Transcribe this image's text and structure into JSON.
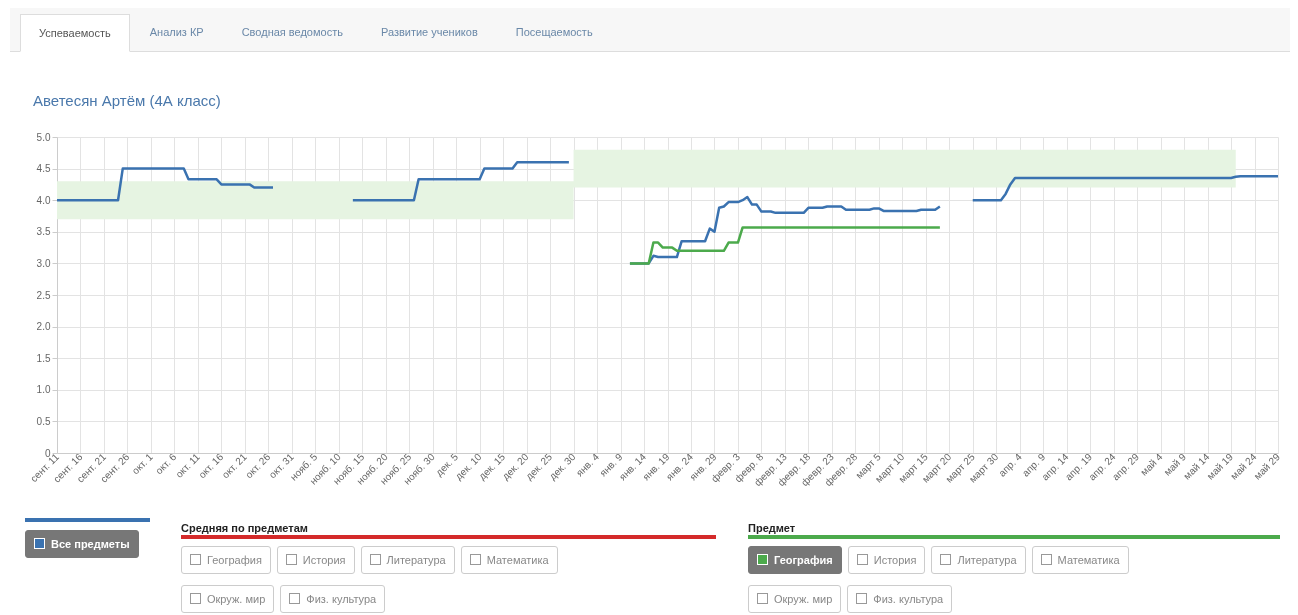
{
  "chart_data": {
    "type": "line",
    "title": "Аветесян Артём (4А класс)",
    "annotations": [
      "Успеваемость",
      "Анализ КР",
      "Сводная ведомость",
      "Развитие учеников",
      "Посещаемость",
      "Средняя по предметам",
      "География",
      "История",
      "Литература",
      "Математика",
      "Окруж. мир",
      "Физ. культура",
      "Предмет",
      "История",
      "Литература",
      "Математика",
      "Окруж. мир",
      "Физ. культура"
    ],
    "categories": [
      "сент. 11",
      null,
      null,
      null,
      null,
      "сент. 16",
      null,
      null,
      null,
      null,
      "сент. 21",
      null,
      null,
      null,
      null,
      "сент. 26",
      null,
      null,
      null,
      null,
      "окт. 1",
      null,
      null,
      null,
      null,
      "окт. 6",
      null,
      null,
      null,
      null,
      "окт. 11",
      null,
      null,
      null,
      null,
      "окт. 16",
      null,
      null,
      null,
      null,
      "окт. 21",
      null,
      null,
      null,
      null,
      "окт. 26",
      null,
      null,
      null,
      null,
      "окт. 31",
      null,
      null,
      null,
      null,
      "нояб. 5",
      null,
      null,
      null,
      null,
      "нояб. 10",
      null,
      null,
      null,
      null,
      "нояб. 15",
      null,
      null,
      null,
      null,
      "нояб. 20",
      null,
      null,
      null,
      null,
      "нояб. 25",
      null,
      null,
      null,
      null,
      "нояб. 30",
      null,
      null,
      null,
      null,
      "дек. 5",
      null,
      null,
      null,
      null,
      "дек. 10",
      null,
      null,
      null,
      null,
      "дек. 15",
      null,
      null,
      null,
      null,
      "дек. 20",
      null,
      null,
      null,
      null,
      "дек. 25",
      null,
      null,
      null,
      null,
      "дек. 30",
      null,
      null,
      null,
      null,
      "янв. 4",
      null,
      null,
      null,
      null,
      "янв. 9",
      null,
      null,
      null,
      null,
      "янв. 14",
      null,
      null,
      null,
      null,
      "янв. 19",
      null,
      null,
      null,
      null,
      "янв. 24",
      null,
      null,
      null,
      null,
      "янв. 29",
      null,
      null,
      null,
      null,
      "февр. 3",
      null,
      null,
      null,
      null,
      "февр. 8",
      null,
      null,
      null,
      null,
      "февр. 13",
      null,
      null,
      null,
      null,
      "февр. 18",
      null,
      null,
      null,
      null,
      "февр. 23",
      null,
      null,
      null,
      null,
      "февр. 28",
      null,
      null,
      null,
      null,
      "март 5",
      null,
      null,
      null,
      null,
      "март 10",
      null,
      null,
      null,
      null,
      "март 15",
      null,
      null,
      null,
      null,
      "март 20",
      null,
      null,
      null,
      null,
      "март 25",
      null,
      null,
      null,
      null,
      "март 30",
      null,
      null,
      null,
      null,
      "апр. 4",
      null,
      null,
      null,
      null,
      "апр. 9",
      null,
      null,
      null,
      null,
      "апр. 14",
      null,
      null,
      null,
      null,
      "апр. 19",
      null,
      null,
      null,
      null,
      "апр. 24",
      null,
      null,
      null,
      null,
      "апр. 29",
      null,
      null,
      null,
      null,
      "май 4",
      null,
      null,
      null,
      null,
      "май 9",
      null,
      null,
      null,
      null,
      "май 14",
      null,
      null,
      null,
      null,
      "май 19",
      null,
      null,
      null,
      null,
      "май 24",
      null,
      null,
      null,
      null,
      "май 29"
    ],
    "series": [
      {
        "type": "area",
        "color": "#e6f4e2",
        "values": [
          null,
          null,
          null,
          null,
          null,
          null,
          null,
          null,
          null,
          null,
          null,
          null,
          null,
          null,
          null,
          null,
          null,
          null,
          null,
          null,
          null,
          null,
          null,
          null,
          null,
          null,
          null,
          null,
          null,
          null,
          null,
          null,
          null,
          null,
          null,
          null,
          null,
          null,
          null,
          null,
          null,
          null,
          null,
          null,
          null,
          null,
          null,
          null,
          null,
          null,
          null,
          null,
          null,
          null,
          null,
          null,
          null,
          null,
          null,
          null,
          null,
          null,
          null,
          null,
          null,
          null,
          null,
          null,
          null,
          null,
          null,
          null,
          null,
          null,
          null,
          null,
          null,
          null,
          null,
          null,
          null,
          null,
          null,
          null,
          null,
          null,
          null,
          null,
          null,
          null,
          null,
          null,
          null,
          null,
          null,
          null,
          null,
          null,
          null,
          null,
          null,
          null,
          null,
          null,
          null,
          null,
          null,
          null,
          null,
          null,
          null,
          null,
          null,
          null,
          null,
          null,
          null,
          null,
          null,
          null,
          null,
          null,
          null,
          null,
          null,
          null,
          null,
          null,
          null,
          null,
          null,
          null,
          null,
          null,
          null,
          null,
          null,
          null,
          null,
          null,
          null,
          null,
          null,
          null,
          null,
          null,
          null,
          null,
          null,
          null,
          null,
          null,
          null,
          null,
          null,
          null,
          null,
          null,
          null,
          null,
          null,
          null,
          null,
          null,
          null,
          null,
          null,
          null,
          null,
          null,
          null,
          null,
          null,
          null,
          null,
          null,
          null,
          null,
          null,
          null,
          null,
          null,
          null,
          null,
          null,
          null,
          null,
          null,
          null,
          null,
          null,
          null,
          null,
          null,
          null,
          null,
          null,
          null,
          null,
          null,
          null,
          null,
          null,
          null,
          null,
          null,
          null,
          null,
          null,
          null,
          null,
          null,
          null,
          null,
          null,
          null,
          null,
          null,
          null,
          null,
          null,
          null,
          null,
          null,
          null,
          null,
          null,
          null,
          null,
          null,
          null,
          null,
          null,
          null,
          null,
          null,
          null,
          null,
          null,
          null,
          null,
          null,
          null,
          null,
          null,
          null,
          null,
          null,
          null,
          null,
          null,
          null,
          null,
          null,
          null,
          null,
          null,
          null,
          null,
          null,
          null
        ],
        "lower": [
          3.7,
          3.7,
          3.7,
          3.7,
          3.7,
          3.7,
          3.7,
          3.7,
          3.7,
          3.7,
          3.7,
          3.7,
          3.7,
          3.7,
          3.7,
          3.7,
          3.7,
          3.7,
          3.7,
          3.7,
          3.7,
          3.7,
          3.7,
          3.7,
          3.7,
          3.7,
          3.7,
          3.7,
          3.7,
          3.7,
          3.7,
          3.7,
          3.7,
          3.7,
          3.7,
          3.7,
          3.7,
          3.7,
          3.7,
          3.7,
          3.7,
          3.7,
          3.7,
          3.7,
          3.7,
          3.7,
          3.7,
          3.7,
          3.7,
          3.7,
          3.7,
          3.7,
          3.7,
          3.7,
          3.7,
          3.7,
          3.7,
          3.7,
          3.7,
          3.7,
          3.7,
          3.7,
          3.7,
          3.7,
          3.7,
          3.7,
          3.7,
          3.7,
          3.7,
          3.7,
          3.7,
          3.7,
          3.7,
          3.7,
          3.7,
          3.7,
          3.7,
          3.7,
          3.7,
          3.7,
          3.7,
          3.7,
          3.7,
          3.7,
          3.7,
          3.7,
          3.7,
          3.7,
          3.7,
          3.7,
          3.7,
          3.7,
          3.7,
          3.7,
          3.7,
          3.7,
          3.7,
          3.7,
          3.7,
          3.7,
          3.7,
          3.7,
          3.7,
          3.7,
          3.7,
          3.7,
          3.7,
          3.7,
          3.7,
          3.7,
          4.2,
          4.2,
          4.2,
          4.2,
          4.2,
          4.2,
          4.2,
          4.2,
          4.2,
          4.2,
          4.2,
          4.2,
          4.2,
          4.2,
          4.2,
          4.2,
          4.2,
          4.2,
          4.2,
          4.2,
          4.2,
          4.2,
          4.2,
          4.2,
          4.2,
          4.2,
          4.2,
          4.2,
          4.2,
          4.2,
          4.2,
          4.2,
          4.2,
          4.2,
          4.2,
          4.2,
          4.2,
          4.2,
          4.2,
          4.2,
          4.2,
          4.2,
          4.2,
          4.2,
          4.2,
          4.2,
          4.2,
          4.2,
          4.2,
          4.2,
          4.2,
          4.2,
          4.2,
          4.2,
          4.2,
          4.2,
          4.2,
          4.2,
          4.2,
          4.2,
          4.2,
          4.2,
          4.2,
          4.2,
          4.2,
          4.2,
          4.2,
          4.2,
          4.2,
          4.2,
          4.2,
          4.2,
          4.2,
          4.2,
          4.2,
          4.2,
          4.2,
          4.2,
          4.2,
          4.2,
          4.2,
          4.2,
          4.2,
          4.2,
          4.2,
          4.2,
          4.2,
          4.2,
          4.2,
          4.2,
          4.2,
          4.2,
          4.2,
          4.2,
          4.2,
          4.2,
          4.2,
          4.2,
          4.2,
          4.2,
          4.2,
          4.2,
          4.2,
          4.2,
          4.2,
          4.2,
          4.2,
          4.2,
          4.2,
          4.2,
          4.2,
          4.2,
          4.2,
          4.2,
          4.2,
          4.2,
          4.2,
          4.2,
          4.2,
          4.2,
          4.2,
          4.2,
          4.2,
          4.2,
          4.2,
          4.2,
          4.2,
          4.2,
          4.2,
          4.2,
          4.2,
          4.2,
          4.2,
          4.2,
          4.2,
          4.2,
          4.2,
          4.2,
          4.2,
          4.2,
          4.2,
          4.2,
          null,
          null,
          null,
          null,
          null,
          null,
          null,
          null,
          null
        ],
        "upper": [
          4.3,
          4.3,
          4.3,
          4.3,
          4.3,
          4.3,
          4.3,
          4.3,
          4.3,
          4.3,
          4.3,
          4.3,
          4.3,
          4.3,
          4.3,
          4.3,
          4.3,
          4.3,
          4.3,
          4.3,
          4.3,
          4.3,
          4.3,
          4.3,
          4.3,
          4.3,
          4.3,
          4.3,
          4.3,
          4.3,
          4.3,
          4.3,
          4.3,
          4.3,
          4.3,
          4.3,
          4.3,
          4.3,
          4.3,
          4.3,
          4.3,
          4.3,
          4.3,
          4.3,
          4.3,
          4.3,
          4.3,
          4.3,
          4.3,
          4.3,
          4.3,
          4.3,
          4.3,
          4.3,
          4.3,
          4.3,
          4.3,
          4.3,
          4.3,
          4.3,
          4.3,
          4.3,
          4.3,
          4.3,
          4.3,
          4.3,
          4.3,
          4.3,
          4.3,
          4.3,
          4.3,
          4.3,
          4.3,
          4.3,
          4.3,
          4.3,
          4.3,
          4.3,
          4.3,
          4.3,
          4.3,
          4.3,
          4.3,
          4.3,
          4.3,
          4.3,
          4.3,
          4.3,
          4.3,
          4.3,
          4.3,
          4.3,
          4.3,
          4.3,
          4.3,
          4.3,
          4.3,
          4.3,
          4.3,
          4.3,
          4.3,
          4.3,
          4.3,
          4.3,
          4.3,
          4.3,
          4.3,
          4.3,
          4.3,
          4.3,
          4.8,
          4.8,
          4.8,
          4.8,
          4.8,
          4.8,
          4.8,
          4.8,
          4.8,
          4.8,
          4.8,
          4.8,
          4.8,
          4.8,
          4.8,
          4.8,
          4.8,
          4.8,
          4.8,
          4.8,
          4.8,
          4.8,
          4.8,
          4.8,
          4.8,
          4.8,
          4.8,
          4.8,
          4.8,
          4.8,
          4.8,
          4.8,
          4.8,
          4.8,
          4.8,
          4.8,
          4.8,
          4.8,
          4.8,
          4.8,
          4.8,
          4.8,
          4.8,
          4.8,
          4.8,
          4.8,
          4.8,
          4.8,
          4.8,
          4.8,
          4.8,
          4.8,
          4.8,
          4.8,
          4.8,
          4.8,
          4.8,
          4.8,
          4.8,
          4.8,
          4.8,
          4.8,
          4.8,
          4.8,
          4.8,
          4.8,
          4.8,
          4.8,
          4.8,
          4.8,
          4.8,
          4.8,
          4.8,
          4.8,
          4.8,
          4.8,
          4.8,
          4.8,
          4.8,
          4.8,
          4.8,
          4.8,
          4.8,
          4.8,
          4.8,
          4.8,
          4.8,
          4.8,
          4.8,
          4.8,
          4.8,
          4.8,
          4.8,
          4.8,
          4.8,
          4.8,
          4.8,
          4.8,
          4.8,
          4.8,
          4.8,
          4.8,
          4.8,
          4.8,
          4.8,
          4.8,
          4.8,
          4.8,
          4.8,
          4.8,
          4.8,
          4.8,
          4.8,
          4.8,
          4.8,
          4.8,
          4.8,
          4.8,
          4.8,
          4.8,
          4.8,
          4.8,
          4.8,
          4.8,
          4.8,
          4.8,
          4.8,
          4.8,
          4.8,
          4.8,
          4.8,
          4.8,
          4.8,
          4.8,
          4.8,
          4.8,
          4.8,
          4.8,
          4.8,
          4.8,
          4.8,
          4.8,
          null,
          null,
          null,
          null,
          null,
          null,
          null,
          null,
          null
        ]
      },
      {
        "name": "Все предметы",
        "color": "#3a72b0",
        "values": [
          4.0,
          4.0,
          4.0,
          4.0,
          4.0,
          4.0,
          4.0,
          4.0,
          4.0,
          4.0,
          4.0,
          4.0,
          4.0,
          4.0,
          4.5,
          4.5,
          4.5,
          4.5,
          4.5,
          4.5,
          4.5,
          4.5,
          4.5,
          4.5,
          4.5,
          4.5,
          4.5,
          4.5,
          4.33,
          4.33,
          4.33,
          4.33,
          4.33,
          4.33,
          4.33,
          4.25,
          4.25,
          4.25,
          4.25,
          4.25,
          4.25,
          4.25,
          4.2,
          4.2,
          4.2,
          4.2,
          4.2,
          null,
          null,
          null,
          null,
          null,
          null,
          null,
          null,
          null,
          null,
          null,
          null,
          null,
          null,
          null,
          null,
          4.0,
          4.0,
          4.0,
          4.0,
          4.0,
          4.0,
          4.0,
          4.0,
          4.0,
          4.0,
          4.0,
          4.0,
          4.0,
          4.0,
          4.33,
          4.33,
          4.33,
          4.33,
          4.33,
          4.33,
          4.33,
          4.33,
          4.33,
          4.33,
          4.33,
          4.33,
          4.33,
          4.33,
          4.5,
          4.5,
          4.5,
          4.5,
          4.5,
          4.5,
          4.5,
          4.6,
          4.6,
          4.6,
          4.6,
          4.6,
          4.6,
          4.6,
          4.6,
          4.6,
          4.6,
          4.6,
          4.6,
          null,
          null,
          null,
          null,
          null,
          null,
          null,
          null,
          null,
          null,
          null,
          null,
          3.0,
          3.0,
          3.0,
          3.0,
          3.0,
          3.12,
          3.1,
          3.1,
          3.1,
          3.1,
          3.1,
          3.35,
          3.35,
          3.35,
          3.35,
          3.35,
          3.35,
          3.55,
          3.5,
          3.88,
          3.9,
          3.97,
          3.97,
          3.97,
          4.0,
          4.05,
          3.93,
          3.93,
          3.82,
          3.82,
          3.82,
          3.8,
          3.8,
          3.8,
          3.8,
          3.8,
          3.8,
          3.8,
          3.88,
          3.88,
          3.88,
          3.88,
          3.9,
          3.9,
          3.9,
          3.9,
          3.85,
          3.85,
          3.85,
          3.85,
          3.85,
          3.85,
          3.87,
          3.87,
          3.83,
          3.83,
          3.83,
          3.83,
          3.83,
          3.83,
          3.83,
          3.83,
          3.85,
          3.85,
          3.85,
          3.85,
          3.9,
          null,
          null,
          null,
          null,
          null,
          null,
          4.0,
          4.0,
          4.0,
          4.0,
          4.0,
          4.0,
          4.0,
          4.1,
          4.25,
          4.35,
          4.35,
          4.35,
          4.35,
          4.35,
          4.35,
          4.35,
          4.35,
          4.35,
          4.35,
          4.35,
          4.35,
          4.35,
          4.35,
          4.35,
          4.35,
          4.35,
          4.35,
          4.35,
          4.35,
          4.35,
          4.35,
          4.35,
          4.35,
          4.35,
          4.35,
          4.35,
          4.35,
          4.35,
          4.35,
          4.35,
          4.35,
          4.35,
          4.35,
          4.35,
          4.35,
          4.35,
          4.35,
          4.35,
          4.35,
          4.35,
          4.35,
          4.35,
          4.35,
          4.35,
          4.35,
          4.35,
          4.37,
          4.38,
          4.38,
          4.38,
          4.38,
          4.38,
          4.38,
          4.38,
          4.38,
          4.38
        ]
      },
      {
        "name": "География",
        "color": "#4caa4c",
        "values": [
          null,
          null,
          null,
          null,
          null,
          null,
          null,
          null,
          null,
          null,
          null,
          null,
          null,
          null,
          null,
          null,
          null,
          null,
          null,
          null,
          null,
          null,
          null,
          null,
          null,
          null,
          null,
          null,
          null,
          null,
          null,
          null,
          null,
          null,
          null,
          null,
          null,
          null,
          null,
          null,
          null,
          null,
          null,
          null,
          null,
          null,
          null,
          null,
          null,
          null,
          null,
          null,
          null,
          null,
          null,
          null,
          null,
          null,
          null,
          null,
          null,
          null,
          null,
          null,
          null,
          null,
          null,
          null,
          null,
          null,
          null,
          null,
          null,
          null,
          null,
          null,
          null,
          null,
          null,
          null,
          null,
          null,
          null,
          null,
          null,
          null,
          null,
          null,
          null,
          null,
          null,
          null,
          null,
          null,
          null,
          null,
          null,
          null,
          null,
          null,
          null,
          null,
          null,
          null,
          null,
          null,
          null,
          null,
          null,
          null,
          null,
          null,
          null,
          null,
          null,
          null,
          null,
          null,
          null,
          null,
          null,
          null,
          3.0,
          3.0,
          3.0,
          3.0,
          3.0,
          3.33,
          3.33,
          3.25,
          3.25,
          3.25,
          3.2,
          3.2,
          3.2,
          3.2,
          3.2,
          3.2,
          3.2,
          3.2,
          3.2,
          3.2,
          3.2,
          3.33,
          3.33,
          3.33,
          3.57,
          3.57,
          3.57,
          3.57,
          3.57,
          3.57,
          3.57,
          3.57,
          3.57,
          3.57,
          3.57,
          3.57,
          3.57,
          3.57,
          3.57,
          3.57,
          3.57,
          3.57,
          3.57,
          3.57,
          3.57,
          3.57,
          3.57,
          3.57,
          3.57,
          3.57,
          3.57,
          3.57,
          3.57,
          3.57,
          3.57,
          3.57,
          3.57,
          3.57,
          3.57,
          3.57,
          3.57,
          3.57,
          3.57,
          3.57,
          3.57,
          3.57,
          3.57,
          null,
          null,
          null,
          null,
          null,
          null,
          null,
          null,
          null,
          null,
          null,
          null,
          null,
          null,
          null,
          null,
          null,
          null,
          null,
          null,
          null,
          null,
          null,
          null,
          null,
          null,
          null,
          null,
          null,
          null,
          null,
          null,
          null,
          null,
          null,
          null,
          null,
          null,
          null,
          null,
          null,
          null,
          null,
          null,
          null,
          null,
          null,
          null,
          null,
          null,
          null,
          null,
          null,
          null,
          null,
          null,
          null,
          null,
          null,
          null,
          null,
          null,
          null,
          null,
          null,
          null,
          null,
          null,
          null,
          null,
          null,
          null
        ]
      }
    ],
    "ylim": [
      0,
      5
    ],
    "yticks": [
      0,
      0.5,
      {
        "value": 1,
        "label": "1.0"
      },
      1.5,
      {
        "value": 2,
        "label": "2.0"
      },
      2.5,
      {
        "value": 3,
        "label": "3.0"
      },
      3.5,
      {
        "value": 4,
        "label": "4.0"
      },
      4.5,
      {
        "value": 5,
        "label": "5.0"
      }
    ],
    "grid": true,
    "legend": "bottom",
    "marker": "none",
    "line_style": "solid"
  }
}
